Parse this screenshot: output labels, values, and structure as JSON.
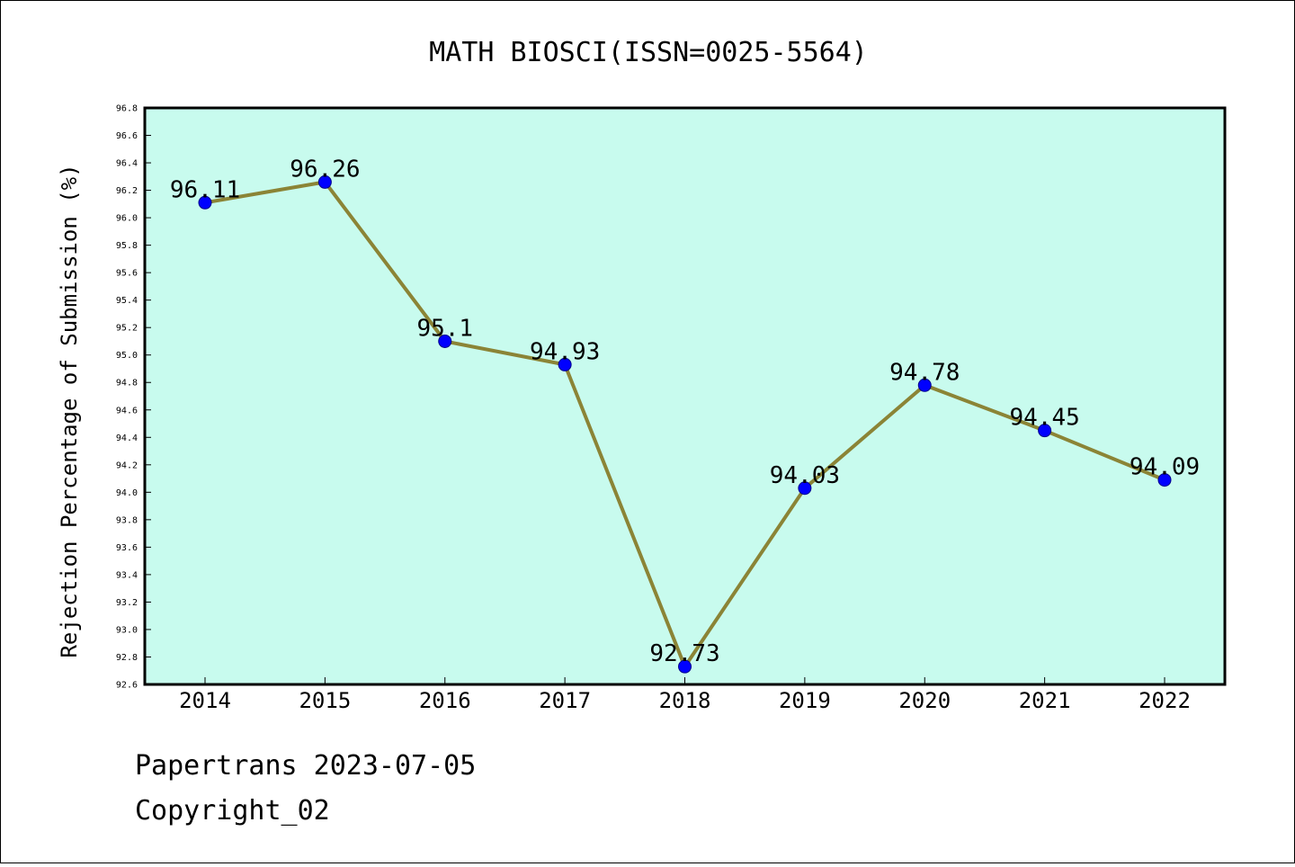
{
  "chart_data": {
    "type": "line",
    "title": "MATH BIOSCI(ISSN=0025-5564)",
    "xlabel": "",
    "ylabel": "Rejection Percentage of Submission (%)",
    "categories": [
      "2014",
      "2015",
      "2016",
      "2017",
      "2018",
      "2019",
      "2020",
      "2021",
      "2022"
    ],
    "series": [
      {
        "values": [
          96.11,
          96.26,
          95.1,
          94.93,
          92.73,
          94.03,
          94.78,
          94.45,
          94.09
        ],
        "data_labels": [
          "96.11",
          "96.26",
          "95.1",
          "94.93",
          "92.73",
          "94.03",
          "94.78",
          "94.45",
          "94.09"
        ]
      }
    ],
    "ylim": [
      92.6,
      96.8
    ],
    "yticks": [
      "92.6",
      "92.8",
      "93.0",
      "93.2",
      "93.4",
      "93.6",
      "93.8",
      "94.0",
      "94.2",
      "94.4",
      "94.6",
      "94.8",
      "95.0",
      "95.2",
      "95.4",
      "95.6",
      "95.8",
      "96.0",
      "96.2",
      "96.4",
      "96.6",
      "96.8"
    ],
    "grid": false,
    "legend": "none",
    "colors": {
      "plot_background": "#c8fbee",
      "line": "#8b8436",
      "marker_fill": "#0000ff",
      "marker_edge": "#00008b"
    }
  },
  "footer": {
    "line1": "Papertrans 2023-07-05",
    "line2": "Copyright_02"
  }
}
